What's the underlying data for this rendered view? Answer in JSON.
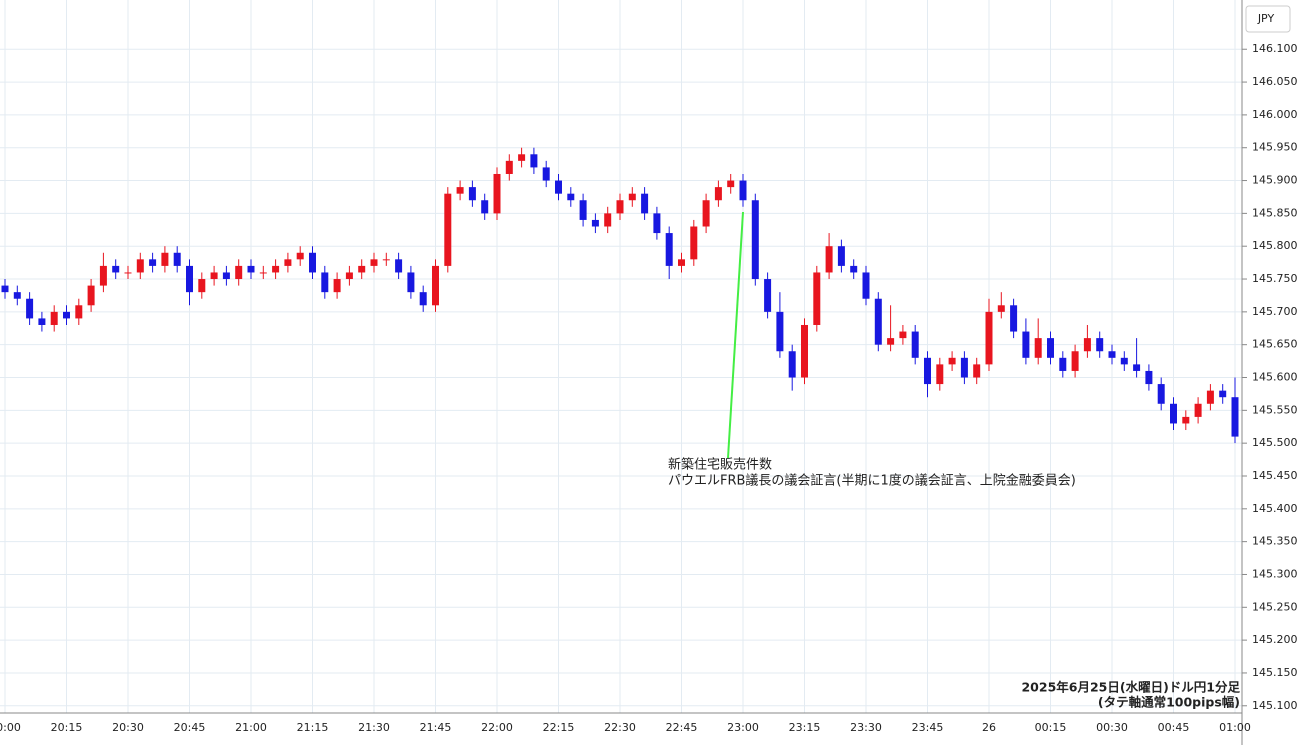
{
  "chart_data": {
    "type": "candlestick",
    "currency": "JPY",
    "categories": [
      "20:00",
      null,
      null,
      null,
      null,
      "20:15",
      null,
      null,
      null,
      null,
      "20:30",
      null,
      null,
      null,
      null,
      "20:45",
      null,
      null,
      null,
      null,
      "21:00",
      null,
      null,
      null,
      null,
      "21:15",
      null,
      null,
      null,
      null,
      "21:30",
      null,
      null,
      null,
      null,
      "21:45",
      null,
      null,
      null,
      null,
      "22:00",
      null,
      null,
      null,
      null,
      "22:15",
      null,
      null,
      null,
      null,
      "22:30",
      null,
      null,
      null,
      null,
      "22:45",
      null,
      null,
      null,
      null,
      "23:00",
      null,
      null,
      null,
      null,
      "23:15",
      null,
      null,
      null,
      null,
      "23:30",
      null,
      null,
      null,
      null,
      "23:45",
      null,
      null,
      null,
      null,
      "26",
      null,
      null,
      null,
      null,
      "00:15",
      null,
      null,
      null,
      null,
      "00:30",
      null,
      null,
      null,
      null,
      "00:45",
      null,
      null,
      null,
      null,
      "01:00"
    ],
    "open": [
      145.74,
      145.73,
      145.72,
      145.69,
      145.68,
      145.7,
      145.69,
      145.71,
      145.74,
      145.77,
      145.76,
      145.76,
      145.78,
      145.77,
      145.79,
      145.77,
      145.73,
      145.75,
      145.76,
      145.75,
      145.77,
      145.76,
      145.76,
      145.77,
      145.78,
      145.79,
      145.76,
      145.73,
      145.75,
      145.76,
      145.77,
      145.78,
      145.78,
      145.76,
      145.73,
      145.71,
      145.77,
      145.88,
      145.89,
      145.87,
      145.85,
      145.91,
      145.93,
      145.94,
      145.92,
      145.9,
      145.88,
      145.87,
      145.84,
      145.83,
      145.85,
      145.87,
      145.88,
      145.85,
      145.82,
      145.77,
      145.78,
      145.83,
      145.87,
      145.89,
      145.9,
      145.87,
      145.75,
      145.7,
      145.64,
      145.6,
      145.68,
      145.76,
      145.8,
      145.77,
      145.76,
      145.72,
      145.65,
      145.66,
      145.67,
      145.63,
      145.59,
      145.62,
      145.63,
      145.6,
      145.62,
      145.7,
      145.71,
      145.67,
      145.63,
      145.66,
      145.63,
      145.61,
      145.64,
      145.66,
      145.64,
      145.63,
      145.62,
      145.61,
      145.59,
      145.56,
      145.53,
      145.54,
      145.56,
      145.58,
      145.57
    ],
    "high": [
      145.75,
      145.74,
      145.73,
      145.7,
      145.71,
      145.71,
      145.72,
      145.75,
      145.79,
      145.78,
      145.77,
      145.79,
      145.79,
      145.8,
      145.8,
      145.78,
      145.76,
      145.77,
      145.77,
      145.78,
      145.78,
      145.77,
      145.78,
      145.79,
      145.8,
      145.8,
      145.77,
      145.76,
      145.77,
      145.78,
      145.79,
      145.79,
      145.79,
      145.77,
      145.74,
      145.78,
      145.89,
      145.9,
      145.9,
      145.88,
      145.92,
      145.94,
      145.95,
      145.95,
      145.93,
      145.91,
      145.89,
      145.88,
      145.85,
      145.86,
      145.88,
      145.89,
      145.89,
      145.86,
      145.83,
      145.79,
      145.84,
      145.88,
      145.9,
      145.91,
      145.91,
      145.88,
      145.76,
      145.73,
      145.65,
      145.69,
      145.77,
      145.82,
      145.81,
      145.78,
      145.77,
      145.73,
      145.71,
      145.68,
      145.68,
      145.64,
      145.63,
      145.64,
      145.64,
      145.63,
      145.72,
      145.73,
      145.72,
      145.69,
      145.69,
      145.67,
      145.64,
      145.65,
      145.68,
      145.67,
      145.65,
      145.64,
      145.66,
      145.62,
      145.6,
      145.57,
      145.55,
      145.57,
      145.59,
      145.59,
      145.6
    ],
    "low": [
      145.72,
      145.71,
      145.68,
      145.67,
      145.67,
      145.68,
      145.68,
      145.7,
      145.73,
      145.75,
      145.75,
      145.75,
      145.76,
      145.76,
      145.76,
      145.71,
      145.72,
      145.74,
      145.74,
      145.74,
      145.75,
      145.75,
      145.75,
      145.76,
      145.77,
      145.75,
      145.72,
      145.72,
      145.74,
      145.75,
      145.76,
      145.77,
      145.75,
      145.72,
      145.7,
      145.7,
      145.76,
      145.87,
      145.86,
      145.84,
      145.84,
      145.9,
      145.92,
      145.91,
      145.89,
      145.87,
      145.86,
      145.83,
      145.82,
      145.82,
      145.84,
      145.86,
      145.84,
      145.81,
      145.75,
      145.76,
      145.77,
      145.82,
      145.86,
      145.88,
      145.86,
      145.74,
      145.69,
      145.63,
      145.58,
      145.59,
      145.67,
      145.75,
      145.76,
      145.75,
      145.71,
      145.64,
      145.64,
      145.65,
      145.62,
      145.57,
      145.58,
      145.61,
      145.59,
      145.59,
      145.61,
      145.69,
      145.66,
      145.62,
      145.62,
      145.62,
      145.6,
      145.6,
      145.63,
      145.63,
      145.62,
      145.61,
      145.6,
      145.58,
      145.55,
      145.52,
      145.52,
      145.53,
      145.55,
      145.56,
      145.5
    ],
    "close": [
      145.73,
      145.72,
      145.69,
      145.68,
      145.7,
      145.69,
      145.71,
      145.74,
      145.77,
      145.76,
      145.76,
      145.78,
      145.77,
      145.79,
      145.77,
      145.73,
      145.75,
      145.76,
      145.75,
      145.77,
      145.76,
      145.76,
      145.77,
      145.78,
      145.79,
      145.76,
      145.73,
      145.75,
      145.76,
      145.77,
      145.78,
      145.78,
      145.76,
      145.73,
      145.71,
      145.77,
      145.88,
      145.89,
      145.87,
      145.85,
      145.91,
      145.93,
      145.94,
      145.92,
      145.9,
      145.88,
      145.87,
      145.84,
      145.83,
      145.85,
      145.87,
      145.88,
      145.85,
      145.82,
      145.77,
      145.78,
      145.83,
      145.87,
      145.89,
      145.9,
      145.87,
      145.75,
      145.7,
      145.64,
      145.6,
      145.68,
      145.76,
      145.8,
      145.77,
      145.76,
      145.72,
      145.65,
      145.66,
      145.67,
      145.63,
      145.59,
      145.62,
      145.63,
      145.6,
      145.62,
      145.7,
      145.71,
      145.67,
      145.63,
      145.66,
      145.63,
      145.61,
      145.64,
      145.66,
      145.64,
      145.63,
      145.62,
      145.61,
      145.59,
      145.56,
      145.53,
      145.54,
      145.56,
      145.58,
      145.57,
      145.51
    ],
    "up_color": "#e8151f",
    "down_color": "#1818e0",
    "ylim": [
      145.089,
      146.175
    ],
    "yticks": [
      {
        "value": 145.1,
        "label": "145.100"
      },
      {
        "value": 145.15,
        "label": "145.150"
      },
      {
        "value": 145.2,
        "label": "145.200"
      },
      {
        "value": 145.25,
        "label": "145.250"
      },
      {
        "value": 145.3,
        "label": "145.300"
      },
      {
        "value": 145.35,
        "label": "145.350"
      },
      {
        "value": 145.4,
        "label": "145.400"
      },
      {
        "value": 145.45,
        "label": "145.450"
      },
      {
        "value": 145.5,
        "label": "145.500"
      },
      {
        "value": 145.55,
        "label": "145.550"
      },
      {
        "value": 145.6,
        "label": "145.600"
      },
      {
        "value": 145.65,
        "label": "145.650"
      },
      {
        "value": 145.7,
        "label": "145.700"
      },
      {
        "value": 145.75,
        "label": "145.750"
      },
      {
        "value": 145.8,
        "label": "145.800"
      },
      {
        "value": 145.85,
        "label": "145.850"
      },
      {
        "value": 145.9,
        "label": "145.900"
      },
      {
        "value": 145.95,
        "label": "145.950"
      },
      {
        "value": 146.0,
        "label": "146.000"
      },
      {
        "value": 146.05,
        "label": "146.050"
      },
      {
        "value": 146.1,
        "label": "146.100"
      }
    ],
    "grid": true,
    "annotation": [
      "新築住宅販売件数",
      "パウエルFRB議長の議会証言(半期に1度の議会証言、上院金融委員会)"
    ],
    "caption": [
      "2025年6月25日(水曜日)ドル円1分足",
      "(タテ軸通常100pips幅)"
    ]
  }
}
